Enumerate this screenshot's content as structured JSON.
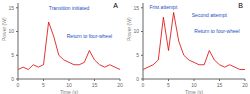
{
  "chart_data": [
    {
      "type": "line",
      "title": "A",
      "x_label": "Time (s)",
      "y_label": "Power (W)",
      "x": [
        0,
        1,
        2,
        3,
        4,
        5,
        6,
        7,
        8,
        9,
        10,
        11,
        12,
        13,
        14,
        15,
        16,
        17,
        18,
        19,
        20
      ],
      "series": [
        {
          "name": "Power",
          "color": "#e00000",
          "values": [
            2,
            2.5,
            2,
            3,
            2.5,
            3,
            12,
            9,
            5,
            4,
            3.5,
            3,
            3,
            3.5,
            6,
            4,
            3,
            2.5,
            3,
            2.5,
            2
          ]
        }
      ],
      "xlim": [
        0,
        20
      ],
      "xticks": [
        0,
        5,
        10,
        15,
        20
      ],
      "ylim": [
        0,
        16
      ],
      "yticks": [
        0,
        5,
        10,
        15
      ],
      "grid": false,
      "annotations": [
        {
          "text": "Transition initiated",
          "x": 10,
          "y": 15
        },
        {
          "text": "Return to four-wheel",
          "x": 14,
          "y": 9
        }
      ]
    },
    {
      "type": "line",
      "title": "B",
      "x_label": "Time (s)",
      "y_label": "Power (W)",
      "x": [
        0,
        1,
        2,
        3,
        4,
        5,
        6,
        7,
        8,
        9,
        10,
        11,
        12,
        13,
        14,
        15,
        16,
        17,
        18,
        19,
        20
      ],
      "series": [
        {
          "name": "Power",
          "color": "#e00000",
          "values": [
            2,
            2.5,
            3,
            4,
            13,
            6,
            14,
            8,
            5,
            4,
            3.5,
            3,
            3,
            6,
            4,
            3,
            2.5,
            3,
            2.5,
            2,
            2
          ]
        }
      ],
      "xlim": [
        0,
        20
      ],
      "xticks": [
        0,
        5,
        10,
        15,
        20
      ],
      "ylim": [
        0,
        16
      ],
      "yticks": [
        0,
        5,
        10,
        15
      ],
      "grid": false,
      "annotations": [
        {
          "text": "Frist attempt",
          "x": 4,
          "y": 15.2
        },
        {
          "text": "Second attempt",
          "x": 13,
          "y": 13.5
        },
        {
          "text": "Return to four-wheel",
          "x": 14.5,
          "y": 10
        }
      ]
    }
  ]
}
